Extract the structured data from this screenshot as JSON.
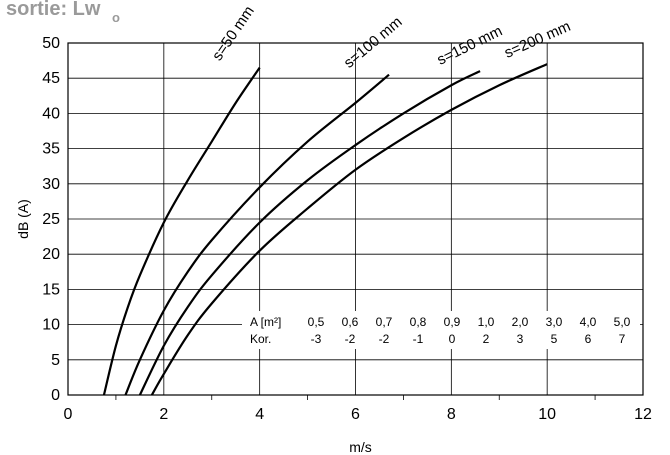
{
  "header": {
    "text": "sortie: Lw",
    "subscript": "o"
  },
  "chart_data": {
    "type": "line",
    "xlabel": "m/s",
    "ylabel": "dB (A)",
    "xlim": [
      0,
      12
    ],
    "ylim": [
      0,
      50
    ],
    "x_ticks": [
      "0",
      "2",
      "4",
      "6",
      "8",
      "10",
      "12"
    ],
    "y_ticks": [
      "0",
      "5",
      "10",
      "15",
      "20",
      "25",
      "30",
      "35",
      "40",
      "45",
      "50"
    ],
    "grid": true,
    "series": [
      {
        "name": "s=50 mm",
        "x": [
          0.75,
          1.0,
          1.25,
          1.5,
          2.0,
          2.5,
          3.0,
          3.5,
          4.0
        ],
        "y": [
          0,
          7.0,
          12.5,
          17.0,
          24.5,
          30.5,
          36.0,
          41.5,
          46.5
        ]
      },
      {
        "name": "s=100 mm",
        "x": [
          1.2,
          1.5,
          2.0,
          2.5,
          3.0,
          4.0,
          5.0,
          6.0,
          6.7
        ],
        "y": [
          0,
          5.0,
          12.0,
          17.5,
          22.0,
          29.5,
          36.0,
          41.5,
          45.5
        ]
      },
      {
        "name": "s=150 mm",
        "x": [
          1.5,
          2.0,
          2.5,
          3.0,
          4.0,
          5.0,
          6.0,
          7.0,
          8.0,
          8.6
        ],
        "y": [
          0,
          7.0,
          12.5,
          17.0,
          24.5,
          30.5,
          35.5,
          40.0,
          44.0,
          46.0
        ]
      },
      {
        "name": "s=200 mm",
        "x": [
          1.75,
          2.0,
          2.5,
          3.0,
          4.0,
          5.0,
          6.0,
          7.0,
          8.0,
          9.0,
          10.0
        ],
        "y": [
          0,
          3.0,
          8.5,
          13.0,
          20.5,
          26.5,
          32.0,
          36.5,
          40.5,
          44.0,
          47.0
        ]
      }
    ],
    "correction_table": {
      "row1_label": "A [m²]",
      "row1": [
        "0,5",
        "0,6",
        "0,7",
        "0,8",
        "0,9",
        "1,0",
        "2,0",
        "3,0",
        "4,0",
        "5,0"
      ],
      "row2_label": "Kor.",
      "row2": [
        "-3",
        "-2",
        "-2",
        "-1",
        "0",
        "2",
        "3",
        "5",
        "6",
        "7"
      ]
    }
  }
}
